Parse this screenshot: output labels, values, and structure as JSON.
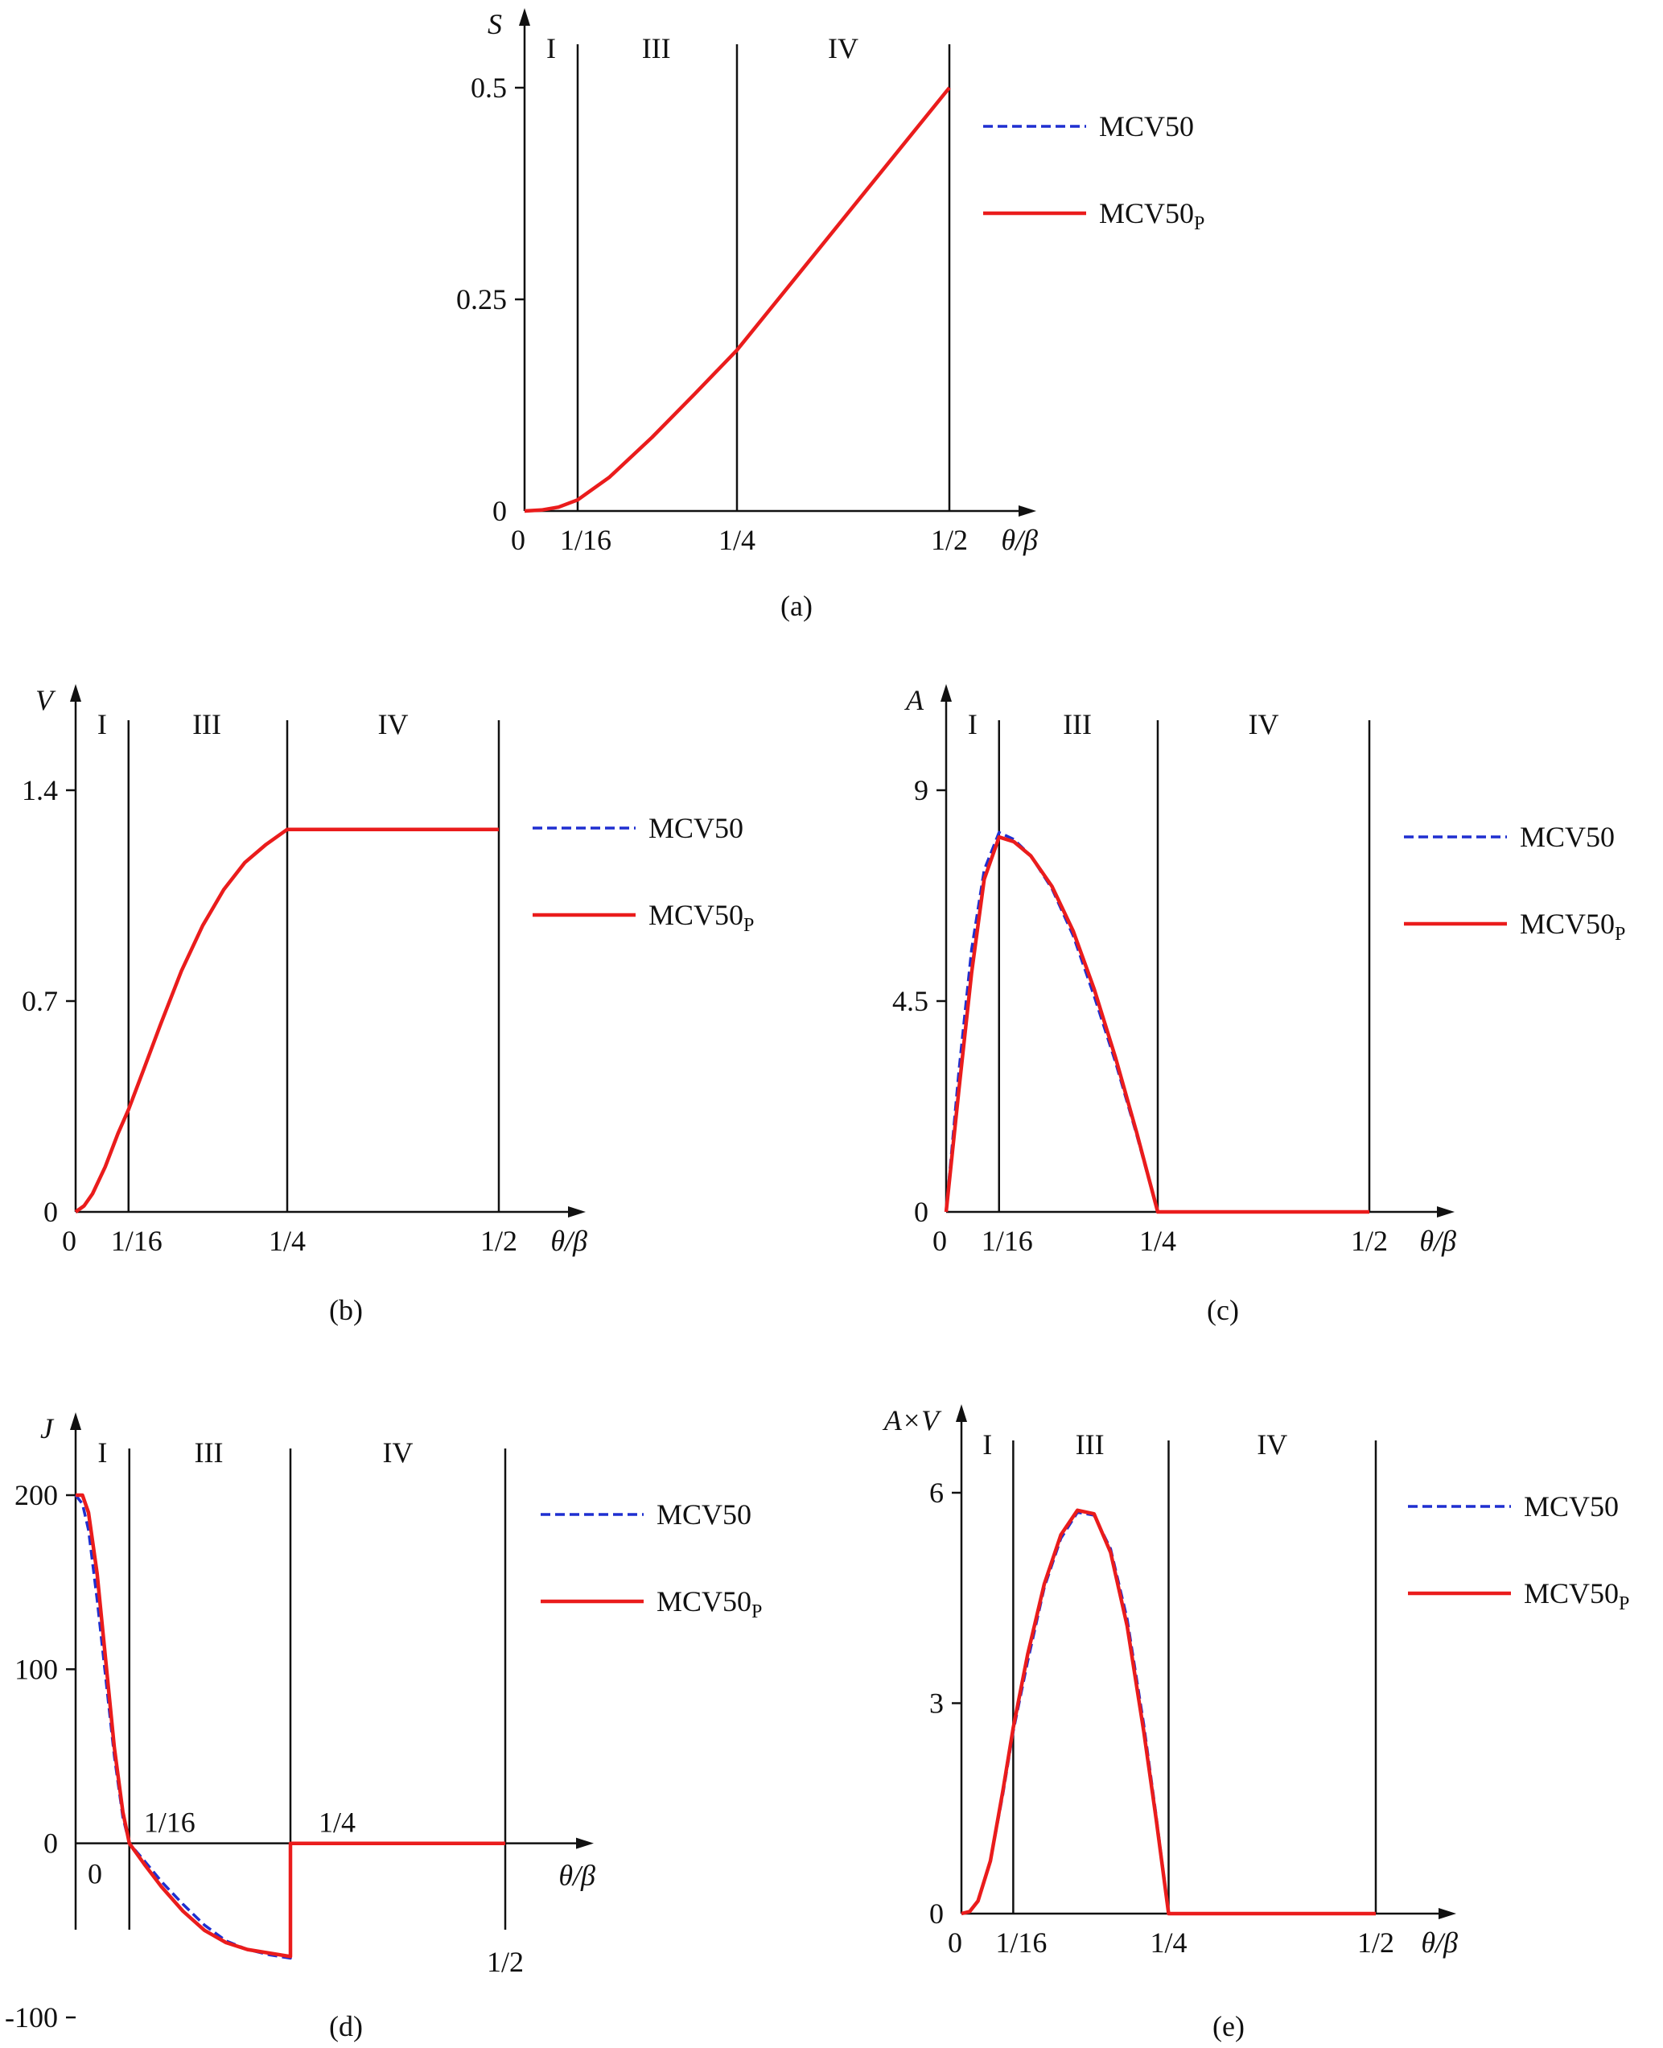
{
  "chart_data": [
    {
      "type": "line",
      "caption": "(a)",
      "ylabel": "S",
      "xlabel": "θ/β",
      "xlim": [
        0,
        0.5
      ],
      "ylim": [
        0,
        0.5
      ],
      "x_ticks": [
        {
          "value": 0,
          "label": "0"
        },
        {
          "value": 0.0625,
          "label": "1/16"
        },
        {
          "value": 0.25,
          "label": "1/4"
        },
        {
          "value": 0.5,
          "label": "1/2"
        }
      ],
      "y_ticks": [
        {
          "value": 0,
          "label": "0"
        },
        {
          "value": 0.25,
          "label": "0.25"
        },
        {
          "value": 0.5,
          "label": "0.5"
        }
      ],
      "zones": [
        {
          "label": "I",
          "x": 0.03125
        },
        {
          "label": "III",
          "x": 0.155
        },
        {
          "label": "IV",
          "x": 0.375
        }
      ],
      "dividers": [
        0.0625,
        0.25,
        0.5
      ],
      "legend": {
        "position": "right",
        "entries": [
          {
            "label": "MCV50",
            "sub": ""
          },
          {
            "label": "MCV50",
            "sub": "P"
          }
        ]
      },
      "series": [
        {
          "name": "MCV50",
          "color": "#1f2fd0",
          "style": "dashed",
          "x": [
            0,
            0.02,
            0.04,
            0.0625,
            0.1,
            0.15,
            0.2,
            0.25,
            0.3,
            0.35,
            0.4,
            0.45,
            0.5
          ],
          "y": [
            0,
            0.0011,
            0.0046,
            0.0131,
            0.04,
            0.087,
            0.138,
            0.19,
            0.252,
            0.314,
            0.376,
            0.438,
            0.5
          ]
        },
        {
          "name": "MCV50P",
          "color": "#ea1c1c",
          "style": "solid",
          "x": [
            0,
            0.02,
            0.04,
            0.0625,
            0.1,
            0.15,
            0.2,
            0.25,
            0.3,
            0.35,
            0.4,
            0.45,
            0.5
          ],
          "y": [
            0,
            0.0011,
            0.0046,
            0.0131,
            0.04,
            0.087,
            0.138,
            0.19,
            0.252,
            0.314,
            0.376,
            0.438,
            0.5
          ]
        }
      ]
    },
    {
      "type": "line",
      "caption": "(b)",
      "ylabel": "V",
      "xlabel": "θ/β",
      "xlim": [
        0,
        0.5
      ],
      "ylim": [
        0,
        1.4
      ],
      "x_ticks": [
        {
          "value": 0,
          "label": "0"
        },
        {
          "value": 0.0625,
          "label": "1/16"
        },
        {
          "value": 0.25,
          "label": "1/4"
        },
        {
          "value": 0.5,
          "label": "1/2"
        }
      ],
      "y_ticks": [
        {
          "value": 0,
          "label": "0"
        },
        {
          "value": 0.7,
          "label": "0.7"
        },
        {
          "value": 1.4,
          "label": "1.4"
        }
      ],
      "zones": [
        {
          "label": "I",
          "x": 0.03125
        },
        {
          "label": "III",
          "x": 0.155
        },
        {
          "label": "IV",
          "x": 0.375
        }
      ],
      "dividers": [
        0.0625,
        0.25,
        0.5
      ],
      "legend": {
        "position": "right",
        "entries": [
          {
            "label": "MCV50",
            "sub": ""
          },
          {
            "label": "MCV50",
            "sub": "P"
          }
        ]
      },
      "series": [
        {
          "name": "MCV50",
          "color": "#1f2fd0",
          "style": "dashed",
          "x": [
            0,
            0.01,
            0.02,
            0.035,
            0.05,
            0.0625,
            0.08,
            0.1,
            0.125,
            0.15,
            0.175,
            0.2,
            0.225,
            0.25,
            0.3,
            0.4,
            0.5
          ],
          "y": [
            0,
            0.02,
            0.06,
            0.15,
            0.26,
            0.34,
            0.47,
            0.62,
            0.8,
            0.95,
            1.07,
            1.16,
            1.22,
            1.27,
            1.27,
            1.27,
            1.27
          ]
        },
        {
          "name": "MCV50P",
          "color": "#ea1c1c",
          "style": "solid",
          "x": [
            0,
            0.01,
            0.02,
            0.035,
            0.05,
            0.0625,
            0.08,
            0.1,
            0.125,
            0.15,
            0.175,
            0.2,
            0.225,
            0.25,
            0.3,
            0.4,
            0.5
          ],
          "y": [
            0,
            0.02,
            0.06,
            0.15,
            0.26,
            0.34,
            0.47,
            0.62,
            0.8,
            0.95,
            1.07,
            1.16,
            1.22,
            1.27,
            1.27,
            1.27,
            1.27
          ]
        }
      ]
    },
    {
      "type": "line",
      "caption": "(c)",
      "ylabel": "A",
      "xlabel": "θ/β",
      "xlim": [
        0,
        0.5
      ],
      "ylim": [
        0,
        9
      ],
      "x_ticks": [
        {
          "value": 0,
          "label": "0"
        },
        {
          "value": 0.0625,
          "label": "1/16"
        },
        {
          "value": 0.25,
          "label": "1/4"
        },
        {
          "value": 0.5,
          "label": "1/2"
        }
      ],
      "y_ticks": [
        {
          "value": 0,
          "label": "0"
        },
        {
          "value": 4.5,
          "label": "4.5"
        },
        {
          "value": 9,
          "label": "9"
        }
      ],
      "zones": [
        {
          "label": "I",
          "x": 0.03125
        },
        {
          "label": "III",
          "x": 0.155
        },
        {
          "label": "IV",
          "x": 0.375
        }
      ],
      "dividers": [
        0.0625,
        0.25,
        0.5
      ],
      "legend": {
        "position": "right",
        "entries": [
          {
            "label": "MCV50",
            "sub": ""
          },
          {
            "label": "MCV50",
            "sub": "P"
          }
        ]
      },
      "series": [
        {
          "name": "MCV50",
          "color": "#1f2fd0",
          "style": "dashed",
          "x": [
            0,
            0.015,
            0.03,
            0.045,
            0.0625,
            0.08,
            0.1,
            0.125,
            0.15,
            0.175,
            0.2,
            0.225,
            0.25,
            0.3,
            0.4,
            0.5
          ],
          "y": [
            0,
            3.0,
            5.6,
            7.3,
            8.1,
            7.95,
            7.6,
            6.9,
            5.9,
            4.6,
            3.2,
            1.65,
            0,
            0,
            0,
            0
          ]
        },
        {
          "name": "MCV50P",
          "color": "#ea1c1c",
          "style": "solid",
          "x": [
            0,
            0.015,
            0.03,
            0.045,
            0.0625,
            0.08,
            0.1,
            0.125,
            0.15,
            0.175,
            0.2,
            0.225,
            0.25,
            0.3,
            0.4,
            0.5
          ],
          "y": [
            0,
            2.6,
            5.1,
            7.1,
            8.0,
            7.9,
            7.6,
            6.95,
            6.0,
            4.75,
            3.3,
            1.7,
            0,
            0,
            0,
            0
          ]
        }
      ]
    },
    {
      "type": "line",
      "caption": "(d)",
      "ylabel": "J",
      "xlabel": "θ/β",
      "xlim": [
        0,
        0.5
      ],
      "ylim": [
        -100,
        200
      ],
      "x_ticks": [
        {
          "value": 0,
          "label": "0"
        },
        {
          "value": 0.0625,
          "label": "1/16"
        },
        {
          "value": 0.25,
          "label": "1/4"
        },
        {
          "value": 0.5,
          "label": "1/2"
        }
      ],
      "y_ticks": [
        {
          "value": -100,
          "label": "-100"
        },
        {
          "value": 0,
          "label": "0"
        },
        {
          "value": 100,
          "label": "100"
        },
        {
          "value": 200,
          "label": "200"
        }
      ],
      "zones": [
        {
          "label": "I",
          "x": 0.03125
        },
        {
          "label": "III",
          "x": 0.155
        },
        {
          "label": "IV",
          "x": 0.375
        }
      ],
      "dividers": [
        0.0625,
        0.25,
        0.5
      ],
      "legend": {
        "position": "right",
        "entries": [
          {
            "label": "MCV50",
            "sub": ""
          },
          {
            "label": "MCV50",
            "sub": "P"
          }
        ]
      },
      "series": [
        {
          "name": "MCV50",
          "color": "#1f2fd0",
          "style": "dashed",
          "x": [
            0,
            0.008,
            0.015,
            0.025,
            0.035,
            0.045,
            0.055,
            0.0625,
            0.08,
            0.1,
            0.125,
            0.15,
            0.175,
            0.2,
            0.225,
            0.25,
            0.25,
            0.3,
            0.4,
            0.5
          ],
          "y": [
            200,
            195,
            180,
            140,
            95,
            50,
            15,
            0,
            -10,
            -22,
            -35,
            -47,
            -56,
            -61,
            -64,
            -66,
            0,
            0,
            0,
            0
          ]
        },
        {
          "name": "MCV50P",
          "color": "#ea1c1c",
          "style": "solid",
          "x": [
            0,
            0.008,
            0.015,
            0.025,
            0.035,
            0.045,
            0.055,
            0.0625,
            0.08,
            0.1,
            0.125,
            0.15,
            0.175,
            0.2,
            0.225,
            0.25,
            0.25,
            0.3,
            0.4,
            0.5
          ],
          "y": [
            200,
            200,
            190,
            155,
            105,
            55,
            18,
            0,
            -12,
            -25,
            -39,
            -50,
            -57,
            -61,
            -63,
            -65,
            0,
            0,
            0,
            0
          ]
        }
      ]
    },
    {
      "type": "line",
      "caption": "(e)",
      "ylabel": "A×V",
      "xlabel": "θ/β",
      "xlim": [
        0,
        0.5
      ],
      "ylim": [
        0,
        6
      ],
      "x_ticks": [
        {
          "value": 0,
          "label": "0"
        },
        {
          "value": 0.0625,
          "label": "1/16"
        },
        {
          "value": 0.25,
          "label": "1/4"
        },
        {
          "value": 0.5,
          "label": "1/2"
        }
      ],
      "y_ticks": [
        {
          "value": 0,
          "label": "0"
        },
        {
          "value": 3,
          "label": "3"
        },
        {
          "value": 6,
          "label": "6"
        }
      ],
      "zones": [
        {
          "label": "I",
          "x": 0.03125
        },
        {
          "label": "III",
          "x": 0.155
        },
        {
          "label": "IV",
          "x": 0.375
        }
      ],
      "dividers": [
        0.0625,
        0.25,
        0.5
      ],
      "legend": {
        "position": "right",
        "entries": [
          {
            "label": "MCV50",
            "sub": ""
          },
          {
            "label": "MCV50",
            "sub": "P"
          }
        ]
      },
      "series": [
        {
          "name": "MCV50",
          "color": "#1f2fd0",
          "style": "dashed",
          "x": [
            0,
            0.01,
            0.02,
            0.035,
            0.05,
            0.0625,
            0.08,
            0.1,
            0.12,
            0.14,
            0.16,
            0.18,
            0.2,
            0.22,
            0.235,
            0.25,
            0.3,
            0.4,
            0.5
          ],
          "y": [
            0,
            0.03,
            0.18,
            0.75,
            1.7,
            2.6,
            3.6,
            4.65,
            5.35,
            5.72,
            5.68,
            5.2,
            4.2,
            2.7,
            1.4,
            0,
            0,
            0,
            0
          ]
        },
        {
          "name": "MCV50P",
          "color": "#ea1c1c",
          "style": "solid",
          "x": [
            0,
            0.01,
            0.02,
            0.035,
            0.05,
            0.0625,
            0.08,
            0.1,
            0.12,
            0.14,
            0.16,
            0.18,
            0.2,
            0.22,
            0.235,
            0.25,
            0.3,
            0.4,
            0.5
          ],
          "y": [
            0,
            0.03,
            0.18,
            0.75,
            1.75,
            2.65,
            3.7,
            4.7,
            5.4,
            5.75,
            5.7,
            5.15,
            4.1,
            2.6,
            1.35,
            0,
            0,
            0,
            0
          ]
        }
      ]
    }
  ]
}
